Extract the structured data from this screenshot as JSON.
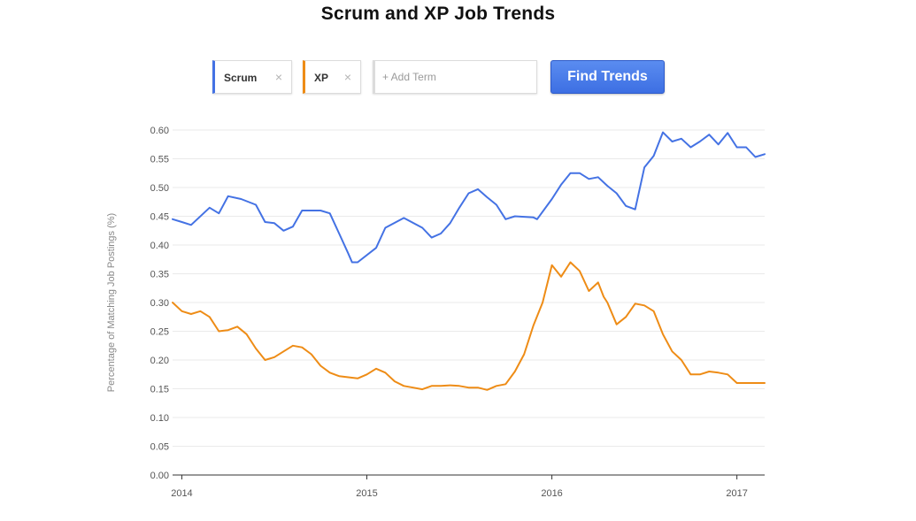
{
  "title": "Scrum and XP Job Trends",
  "terms": [
    {
      "label": "Scrum",
      "remove_icon": "×",
      "color": "#4472e4"
    },
    {
      "label": "XP",
      "remove_icon": "×",
      "color": "#ee8c16"
    }
  ],
  "add_term": {
    "placeholder": "+ Add Term"
  },
  "find_button": {
    "label": "Find Trends"
  },
  "chart_data": {
    "type": "line",
    "title": "Scrum and XP Job Trends",
    "xlabel": "",
    "ylabel": "Percentage of Matching Job Postings (%)",
    "ylim": [
      0,
      0.6
    ],
    "xlim": [
      2013.95,
      2017.15
    ],
    "y_ticks": [
      "0.00",
      "0.05",
      "0.10",
      "0.15",
      "0.20",
      "0.25",
      "0.30",
      "0.35",
      "0.40",
      "0.45",
      "0.50",
      "0.55",
      "0.60"
    ],
    "x_ticks": [
      {
        "value": 2014,
        "label": "2014"
      },
      {
        "value": 2015,
        "label": "2015"
      },
      {
        "value": 2016,
        "label": "2016"
      },
      {
        "value": 2017,
        "label": "2017"
      }
    ],
    "grid": true,
    "legend": "top",
    "series": [
      {
        "name": "Scrum",
        "color": "#4472e4",
        "x": [
          2013.95,
          2014.0,
          2014.05,
          2014.15,
          2014.2,
          2014.25,
          2014.32,
          2014.4,
          2014.45,
          2014.5,
          2014.55,
          2014.6,
          2014.65,
          2014.75,
          2014.8,
          2014.85,
          2014.9,
          2014.92,
          2014.95,
          2015.05,
          2015.1,
          2015.2,
          2015.3,
          2015.35,
          2015.4,
          2015.45,
          2015.5,
          2015.55,
          2015.6,
          2015.65,
          2015.7,
          2015.75,
          2015.8,
          2015.9,
          2015.92,
          2016.0,
          2016.05,
          2016.1,
          2016.15,
          2016.2,
          2016.25,
          2016.3,
          2016.35,
          2016.4,
          2016.45,
          2016.5,
          2016.55,
          2016.6,
          2016.65,
          2016.7,
          2016.75,
          2016.8,
          2016.85,
          2016.9,
          2016.95,
          2017.0,
          2017.05,
          2017.1,
          2017.15
        ],
        "y": [
          0.445,
          0.44,
          0.435,
          0.465,
          0.455,
          0.485,
          0.48,
          0.47,
          0.44,
          0.438,
          0.425,
          0.432,
          0.46,
          0.46,
          0.455,
          0.42,
          0.385,
          0.37,
          0.37,
          0.395,
          0.43,
          0.447,
          0.43,
          0.413,
          0.42,
          0.438,
          0.465,
          0.49,
          0.497,
          0.483,
          0.47,
          0.445,
          0.45,
          0.448,
          0.445,
          0.48,
          0.505,
          0.525,
          0.525,
          0.515,
          0.518,
          0.503,
          0.49,
          0.468,
          0.462,
          0.535,
          0.555,
          0.596,
          0.58,
          0.585,
          0.57,
          0.58,
          0.592,
          0.575,
          0.595,
          0.57,
          0.57,
          0.553,
          0.558
        ]
      },
      {
        "name": "XP",
        "color": "#ee8c16",
        "x": [
          2013.95,
          2014.0,
          2014.05,
          2014.1,
          2014.15,
          2014.2,
          2014.25,
          2014.3,
          2014.35,
          2014.4,
          2014.45,
          2014.5,
          2014.55,
          2014.6,
          2014.65,
          2014.7,
          2014.75,
          2014.8,
          2014.85,
          2014.9,
          2014.95,
          2015.0,
          2015.05,
          2015.1,
          2015.15,
          2015.2,
          2015.25,
          2015.3,
          2015.35,
          2015.4,
          2015.45,
          2015.5,
          2015.55,
          2015.6,
          2015.65,
          2015.7,
          2015.75,
          2015.8,
          2015.85,
          2015.9,
          2015.95,
          2016.0,
          2016.05,
          2016.1,
          2016.15,
          2016.2,
          2016.25,
          2016.28,
          2016.3,
          2016.35,
          2016.4,
          2016.45,
          2016.5,
          2016.55,
          2016.6,
          2016.65,
          2016.7,
          2016.75,
          2016.8,
          2016.85,
          2016.9,
          2016.95,
          2017.0,
          2017.05,
          2017.1,
          2017.15
        ],
        "y": [
          0.3,
          0.285,
          0.28,
          0.285,
          0.275,
          0.25,
          0.252,
          0.258,
          0.245,
          0.22,
          0.2,
          0.205,
          0.215,
          0.225,
          0.222,
          0.21,
          0.19,
          0.178,
          0.172,
          0.17,
          0.168,
          0.175,
          0.185,
          0.178,
          0.163,
          0.155,
          0.152,
          0.149,
          0.155,
          0.155,
          0.156,
          0.155,
          0.152,
          0.152,
          0.148,
          0.155,
          0.158,
          0.18,
          0.21,
          0.26,
          0.3,
          0.365,
          0.345,
          0.37,
          0.355,
          0.32,
          0.335,
          0.31,
          0.3,
          0.262,
          0.275,
          0.298,
          0.295,
          0.285,
          0.245,
          0.215,
          0.2,
          0.175,
          0.175,
          0.18,
          0.178,
          0.175,
          0.16,
          0.16,
          0.16,
          0.16
        ]
      }
    ]
  }
}
